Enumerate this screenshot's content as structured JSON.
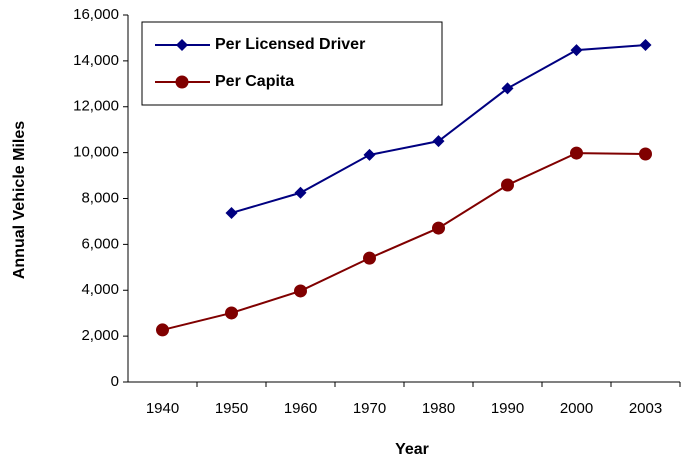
{
  "chart_data": {
    "type": "line",
    "x_label": "Year",
    "y_label": "Annual Vehicle Miles",
    "categories": [
      "1940",
      "1950",
      "1960",
      "1970",
      "1980",
      "1990",
      "2000",
      "2003"
    ],
    "series": [
      {
        "name": "Per Licensed Driver",
        "color": "#000080",
        "marker": "diamond",
        "values": [
          null,
          7370,
          8250,
          9900,
          10500,
          12800,
          14470,
          14690
        ]
      },
      {
        "name": "Per Capita",
        "color": "#800000",
        "marker": "circle",
        "values": [
          2270,
          3010,
          3970,
          5400,
          6710,
          8590,
          9980,
          9940
        ]
      }
    ],
    "ylim": [
      0,
      16000
    ],
    "yticks": [
      0,
      {
        "value": 2000,
        "label": "2,000"
      },
      {
        "value": 4000,
        "label": "4,000"
      },
      {
        "value": 6000,
        "label": "6,000"
      },
      {
        "value": 8000,
        "label": "8,000"
      },
      {
        "value": 10000,
        "label": "10,000"
      },
      {
        "value": 12000,
        "label": "12,000"
      },
      {
        "value": 14000,
        "label": "14,000"
      },
      {
        "value": 16000,
        "label": "16,000"
      }
    ],
    "grid": false,
    "legend": "upper left"
  }
}
